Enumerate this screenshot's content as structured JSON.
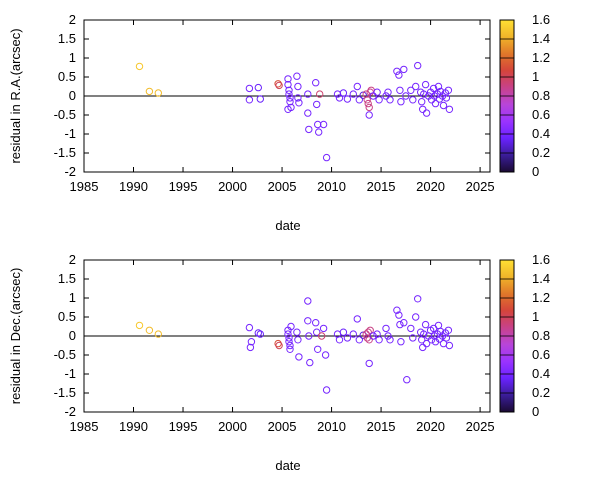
{
  "colorbar": {
    "min": 0,
    "max": 1.6,
    "ticks": [
      "0",
      "0.2",
      "0.4",
      "0.6",
      "0.8",
      "1",
      "1.2",
      "1.4",
      "1.6"
    ],
    "palette": [
      "#1a0a33",
      "#3b1d99",
      "#6a22ff",
      "#9a33ff",
      "#b845d9",
      "#c8428a",
      "#d4443b",
      "#e0772a",
      "#f0b52a",
      "#ffe033"
    ]
  },
  "chart_data": [
    {
      "type": "scatter",
      "title": "",
      "xlabel": "date",
      "ylabel": "residual in R.A.(arcsec)",
      "xlim": [
        1985,
        2026
      ],
      "ylim": [
        -2,
        2
      ],
      "xticks": [
        "1985",
        "1990",
        "1995",
        "2000",
        "2005",
        "2010",
        "2015",
        "2020",
        "2025"
      ],
      "yticks": [
        "2",
        "1.5",
        "1",
        "0.5",
        "0",
        "-0.5",
        "-1",
        "-1.5",
        "-2"
      ],
      "zero_line": true,
      "points": [
        [
          1990.6,
          0.78,
          1.5
        ],
        [
          1991.6,
          0.12,
          1.45
        ],
        [
          1992.5,
          0.08,
          1.45
        ],
        [
          2001.7,
          0.2,
          0.4
        ],
        [
          2001.7,
          -0.1,
          0.4
        ],
        [
          2002.6,
          0.22,
          0.35
        ],
        [
          2002.8,
          -0.08,
          0.35
        ],
        [
          2004.6,
          0.32,
          1.1
        ],
        [
          2004.7,
          0.28,
          1.0
        ],
        [
          2005.6,
          0.45,
          0.4
        ],
        [
          2005.6,
          0.3,
          0.4
        ],
        [
          2005.7,
          0.15,
          0.4
        ],
        [
          2005.7,
          0.05,
          0.4
        ],
        [
          2005.8,
          -0.05,
          0.4
        ],
        [
          2005.8,
          -0.15,
          0.4
        ],
        [
          2005.9,
          -0.3,
          0.4
        ],
        [
          2005.6,
          -0.35,
          0.4
        ],
        [
          2006.5,
          0.52,
          0.4
        ],
        [
          2006.6,
          0.25,
          0.4
        ],
        [
          2006.6,
          -0.05,
          0.4
        ],
        [
          2006.7,
          -0.18,
          0.4
        ],
        [
          2007.6,
          0.05,
          0.4
        ],
        [
          2007.6,
          -0.45,
          0.4
        ],
        [
          2007.7,
          -0.88,
          0.4
        ],
        [
          2008.4,
          0.35,
          0.4
        ],
        [
          2008.5,
          -0.22,
          0.4
        ],
        [
          2008.6,
          -0.75,
          0.4
        ],
        [
          2008.7,
          -0.95,
          0.4
        ],
        [
          2008.8,
          0.05,
          0.95
        ],
        [
          2009.2,
          -0.75,
          0.4
        ],
        [
          2009.5,
          -1.62,
          0.4
        ],
        [
          2010.6,
          0.05,
          0.4
        ],
        [
          2010.8,
          -0.05,
          0.4
        ],
        [
          2011.2,
          0.08,
          0.35
        ],
        [
          2011.6,
          -0.08,
          0.4
        ],
        [
          2012.2,
          0.05,
          0.4
        ],
        [
          2012.6,
          0.25,
          0.4
        ],
        [
          2012.8,
          -0.1,
          0.4
        ],
        [
          2013.2,
          0.02,
          0.3
        ],
        [
          2013.5,
          0.05,
          0.9
        ],
        [
          2013.6,
          -0.1,
          0.9
        ],
        [
          2013.7,
          -0.2,
          0.9
        ],
        [
          2013.8,
          -0.3,
          0.9
        ],
        [
          2013.9,
          0.1,
          0.9
        ],
        [
          2014.0,
          0.15,
          0.9
        ],
        [
          2013.8,
          -0.5,
          0.4
        ],
        [
          2014.2,
          0.0,
          0.4
        ],
        [
          2014.6,
          0.1,
          0.4
        ],
        [
          2014.8,
          -0.1,
          0.4
        ],
        [
          2015.5,
          0.0,
          0.4
        ],
        [
          2015.7,
          0.1,
          0.4
        ],
        [
          2015.9,
          -0.1,
          0.4
        ],
        [
          2016.6,
          0.65,
          0.4
        ],
        [
          2016.8,
          0.55,
          0.4
        ],
        [
          2016.9,
          0.15,
          0.4
        ],
        [
          2017.0,
          -0.15,
          0.4
        ],
        [
          2017.3,
          0.7,
          0.4
        ],
        [
          2017.5,
          0.0,
          0.4
        ],
        [
          2018.0,
          0.15,
          0.4
        ],
        [
          2018.2,
          -0.1,
          0.4
        ],
        [
          2018.5,
          0.25,
          0.4
        ],
        [
          2018.7,
          0.8,
          0.4
        ],
        [
          2019.0,
          0.1,
          0.4
        ],
        [
          2019.1,
          -0.15,
          0.4
        ],
        [
          2019.2,
          -0.35,
          0.4
        ],
        [
          2019.3,
          0.05,
          0.4
        ],
        [
          2019.5,
          0.3,
          0.4
        ],
        [
          2019.6,
          -0.45,
          0.4
        ],
        [
          2019.8,
          0.0,
          0.4
        ],
        [
          2020.0,
          0.1,
          0.4
        ],
        [
          2020.1,
          -0.1,
          0.4
        ],
        [
          2020.3,
          0.2,
          0.4
        ],
        [
          2020.4,
          0.0,
          0.4
        ],
        [
          2020.5,
          -0.2,
          0.4
        ],
        [
          2020.7,
          0.05,
          0.4
        ],
        [
          2020.8,
          0.25,
          0.4
        ],
        [
          2020.9,
          -0.08,
          0.4
        ],
        [
          2021.0,
          0.12,
          0.4
        ],
        [
          2021.2,
          0.0,
          0.4
        ],
        [
          2021.3,
          -0.25,
          0.4
        ],
        [
          2021.5,
          0.08,
          0.4
        ],
        [
          2021.6,
          -0.05,
          0.4
        ],
        [
          2021.8,
          0.15,
          0.4
        ],
        [
          2021.9,
          -0.35,
          0.4
        ]
      ]
    },
    {
      "type": "scatter",
      "title": "",
      "xlabel": "date",
      "ylabel": "residual in Dec.(arcsec)",
      "xlim": [
        1985,
        2026
      ],
      "ylim": [
        -2,
        2
      ],
      "xticks": [
        "1985",
        "1990",
        "1995",
        "2000",
        "2005",
        "2010",
        "2015",
        "2020",
        "2025"
      ],
      "yticks": [
        "2",
        "1.5",
        "1",
        "0.5",
        "0",
        "-0.5",
        "-1",
        "-1.5",
        "-2"
      ],
      "zero_line": true,
      "points": [
        [
          1990.6,
          0.28,
          1.5
        ],
        [
          1991.6,
          0.15,
          1.45
        ],
        [
          1992.5,
          0.05,
          1.45
        ],
        [
          2001.7,
          0.22,
          0.4
        ],
        [
          2001.8,
          -0.3,
          0.4
        ],
        [
          2001.9,
          -0.15,
          0.4
        ],
        [
          2002.6,
          0.08,
          0.35
        ],
        [
          2002.8,
          0.05,
          0.35
        ],
        [
          2004.6,
          -0.2,
          1.1
        ],
        [
          2004.7,
          -0.25,
          1.0
        ],
        [
          2005.6,
          0.15,
          0.4
        ],
        [
          2005.6,
          0.05,
          0.4
        ],
        [
          2005.7,
          -0.05,
          0.4
        ],
        [
          2005.7,
          -0.15,
          0.4
        ],
        [
          2005.8,
          -0.25,
          0.4
        ],
        [
          2005.8,
          -0.35,
          0.4
        ],
        [
          2005.9,
          0.25,
          0.4
        ],
        [
          2006.5,
          0.1,
          0.4
        ],
        [
          2006.6,
          -0.1,
          0.4
        ],
        [
          2006.7,
          -0.55,
          0.4
        ],
        [
          2007.6,
          0.92,
          0.4
        ],
        [
          2007.6,
          0.4,
          0.4
        ],
        [
          2007.7,
          0.0,
          0.4
        ],
        [
          2007.8,
          -0.7,
          0.4
        ],
        [
          2008.4,
          0.35,
          0.4
        ],
        [
          2008.5,
          0.1,
          0.4
        ],
        [
          2008.6,
          -0.35,
          0.4
        ],
        [
          2009.0,
          0.0,
          0.95
        ],
        [
          2009.2,
          0.2,
          0.4
        ],
        [
          2009.4,
          -0.5,
          0.4
        ],
        [
          2009.5,
          -1.42,
          0.4
        ],
        [
          2010.6,
          0.05,
          0.4
        ],
        [
          2010.8,
          -0.1,
          0.4
        ],
        [
          2011.2,
          0.1,
          0.35
        ],
        [
          2011.6,
          -0.05,
          0.4
        ],
        [
          2012.2,
          0.05,
          0.4
        ],
        [
          2012.6,
          0.45,
          0.4
        ],
        [
          2012.8,
          -0.1,
          0.4
        ],
        [
          2013.2,
          0.02,
          0.3
        ],
        [
          2013.5,
          0.05,
          0.9
        ],
        [
          2013.6,
          -0.05,
          0.9
        ],
        [
          2013.7,
          0.1,
          0.9
        ],
        [
          2013.8,
          -0.1,
          0.9
        ],
        [
          2013.9,
          0.15,
          0.9
        ],
        [
          2013.8,
          -0.72,
          0.4
        ],
        [
          2014.2,
          0.0,
          0.4
        ],
        [
          2014.6,
          0.05,
          0.4
        ],
        [
          2014.8,
          -0.1,
          0.4
        ],
        [
          2015.5,
          0.2,
          0.4
        ],
        [
          2015.7,
          0.0,
          0.4
        ],
        [
          2015.9,
          -0.1,
          0.4
        ],
        [
          2016.6,
          0.68,
          0.4
        ],
        [
          2016.8,
          0.55,
          0.4
        ],
        [
          2016.9,
          0.3,
          0.4
        ],
        [
          2017.0,
          -0.15,
          0.4
        ],
        [
          2017.3,
          0.35,
          0.4
        ],
        [
          2017.6,
          -1.15,
          0.4
        ],
        [
          2018.0,
          0.2,
          0.4
        ],
        [
          2018.2,
          -0.05,
          0.4
        ],
        [
          2018.5,
          0.5,
          0.4
        ],
        [
          2018.7,
          0.98,
          0.4
        ],
        [
          2019.0,
          0.1,
          0.4
        ],
        [
          2019.1,
          -0.1,
          0.4
        ],
        [
          2019.2,
          -0.3,
          0.4
        ],
        [
          2019.3,
          0.05,
          0.4
        ],
        [
          2019.5,
          0.3,
          0.4
        ],
        [
          2019.6,
          -0.2,
          0.4
        ],
        [
          2019.8,
          0.0,
          0.4
        ],
        [
          2020.0,
          0.15,
          0.4
        ],
        [
          2020.1,
          -0.1,
          0.4
        ],
        [
          2020.3,
          0.2,
          0.4
        ],
        [
          2020.4,
          0.0,
          0.4
        ],
        [
          2020.5,
          -0.15,
          0.4
        ],
        [
          2020.7,
          0.05,
          0.4
        ],
        [
          2020.8,
          0.28,
          0.4
        ],
        [
          2020.9,
          -0.08,
          0.4
        ],
        [
          2021.0,
          0.12,
          0.4
        ],
        [
          2021.2,
          0.0,
          0.4
        ],
        [
          2021.3,
          -0.2,
          0.4
        ],
        [
          2021.5,
          0.08,
          0.4
        ],
        [
          2021.6,
          -0.05,
          0.4
        ],
        [
          2021.8,
          0.15,
          0.4
        ],
        [
          2021.9,
          -0.25,
          0.4
        ]
      ]
    }
  ]
}
